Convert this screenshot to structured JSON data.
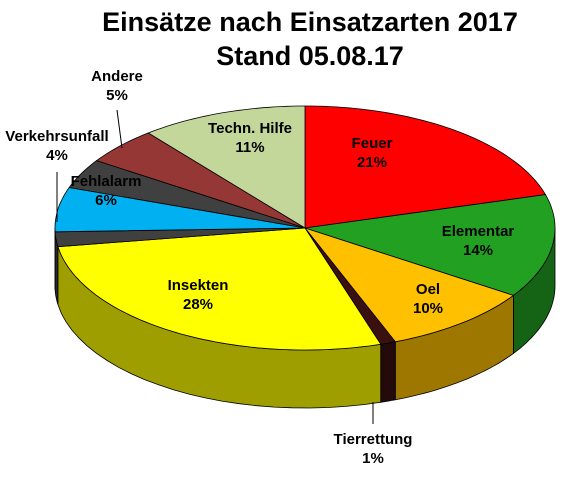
{
  "chart_data": {
    "type": "pie",
    "title": "Einsätze nach Einsatzarten 2017",
    "subtitle": "Stand 05.08.17",
    "series": [
      {
        "name": "Feuer",
        "value": 21,
        "label": "21%",
        "color": "#ff0000"
      },
      {
        "name": "Elementar",
        "value": 14,
        "label": "14%",
        "color": "#22a022"
      },
      {
        "name": "Oel",
        "value": 10,
        "label": "10%",
        "color": "#ffc000"
      },
      {
        "name": "Tierrettung",
        "value": 1,
        "label": "1%",
        "color": "#3a1010"
      },
      {
        "name": "Insekten",
        "value": 28,
        "label": "28%",
        "color": "#ffff00"
      },
      {
        "name": "",
        "value": 2,
        "label": "",
        "color": "#404040"
      },
      {
        "name": "Fehlalarm",
        "value": 6,
        "label": "6%",
        "color": "#00b0f0"
      },
      {
        "name": "Verkehrsunfall",
        "value": 4,
        "label": "4%",
        "color": "#404040"
      },
      {
        "name": "Andere",
        "value": 5,
        "label": "5%",
        "color": "#953735"
      },
      {
        "name": "Techn. Hilfe",
        "value": 11,
        "label": "11%",
        "color": "#c4d79b"
      }
    ],
    "legend": "none"
  }
}
